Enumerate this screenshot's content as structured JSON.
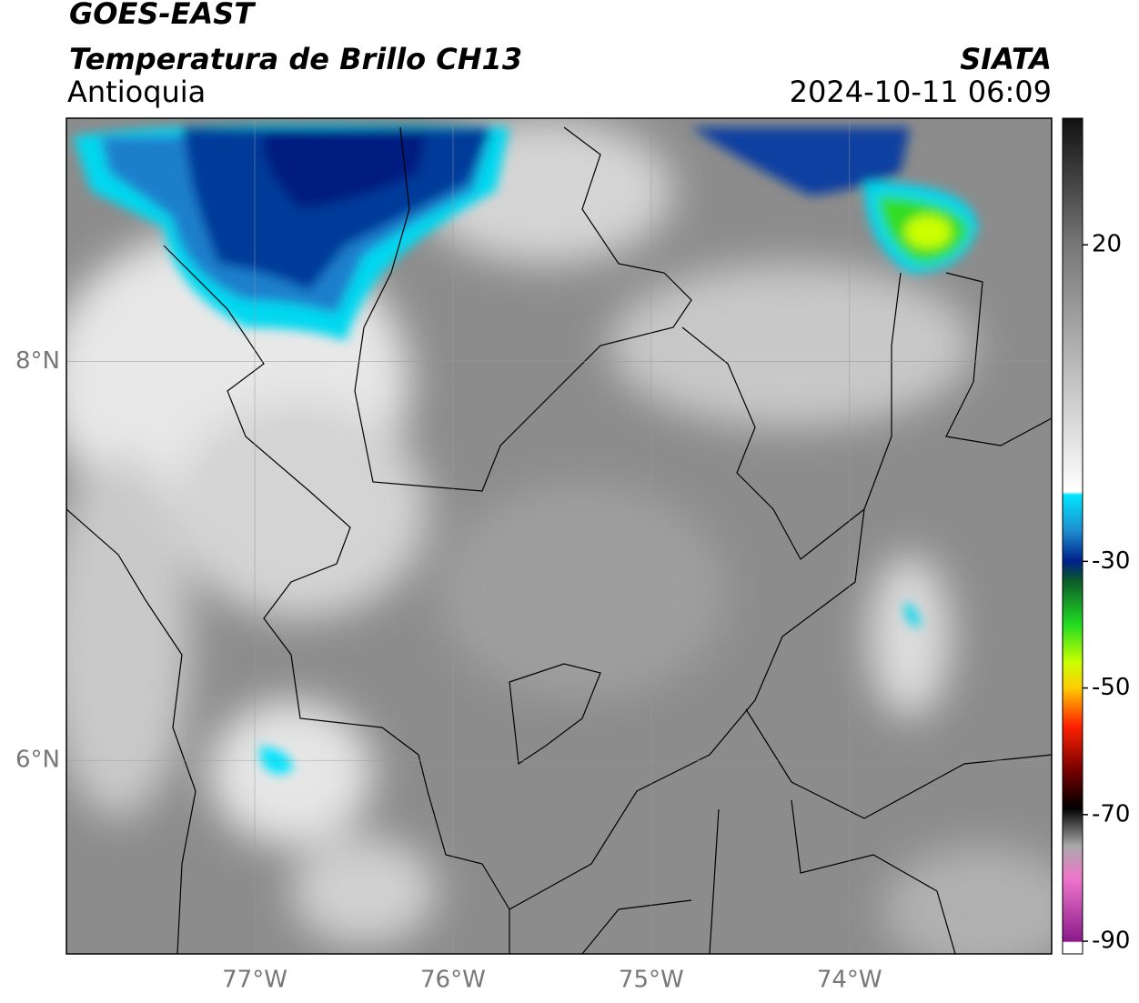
{
  "header": {
    "title": "GOES-EAST",
    "subtitle": "Temperatura de Brillo CH13",
    "region": "Antioquia",
    "source": "SIATA",
    "timestamp": "2024-10-11 06:09"
  },
  "map": {
    "lon_range": [
      -77.95,
      -72.98
    ],
    "lat_range": [
      5.03,
      9.22
    ],
    "lon_ticks": [
      {
        "value": -77,
        "label": "77°W"
      },
      {
        "value": -76,
        "label": "76°W"
      },
      {
        "value": -75,
        "label": "75°W"
      },
      {
        "value": -74,
        "label": "74°W"
      }
    ],
    "lat_ticks": [
      {
        "value": 8,
        "label": "8°N"
      },
      {
        "value": 6,
        "label": "6°N"
      }
    ],
    "grid": true
  },
  "colorbar": {
    "range": [
      -92,
      40
    ],
    "ticks": [
      20,
      -30,
      -50,
      -70,
      -90
    ],
    "stops": [
      {
        "value": 40,
        "color": "#111111"
      },
      {
        "value": 20,
        "color": "#777777"
      },
      {
        "value": -19,
        "color": "#ffffff"
      },
      {
        "value": -19.5,
        "color": "#00e5ff"
      },
      {
        "value": -25,
        "color": "#1e90d0"
      },
      {
        "value": -30,
        "color": "#00208a"
      },
      {
        "value": -33,
        "color": "#0a5a2a"
      },
      {
        "value": -40,
        "color": "#22dd22"
      },
      {
        "value": -46,
        "color": "#ccff00"
      },
      {
        "value": -50,
        "color": "#ffcc00"
      },
      {
        "value": -56,
        "color": "#ff2200"
      },
      {
        "value": -63,
        "color": "#770000"
      },
      {
        "value": -69,
        "color": "#000000"
      },
      {
        "value": -75,
        "color": "#aaaaaa"
      },
      {
        "value": -80,
        "color": "#ee77cc"
      },
      {
        "value": -90,
        "color": "#8a1a8a"
      },
      {
        "value": -90.2,
        "color": "#ffffff"
      },
      {
        "value": -92,
        "color": "#ffffff"
      }
    ]
  }
}
